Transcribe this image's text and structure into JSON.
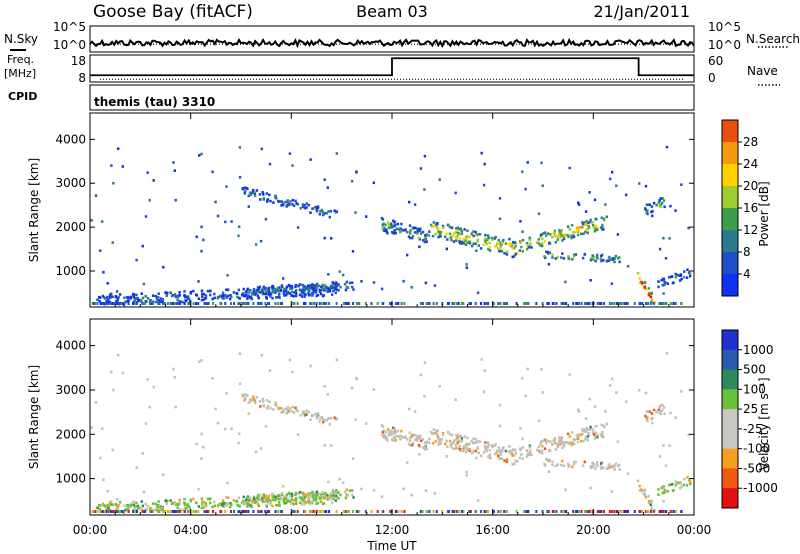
{
  "header": {
    "station": "Goose Bay (fitACF)",
    "beam": "Beam 03",
    "date": "21/Jan/2011"
  },
  "noise_panel": {
    "left_label": "N.Sky",
    "right_label": "N.Search",
    "left_ticks": [
      "10^5",
      "10^0"
    ],
    "right_ticks": [
      "10^5",
      "10^0"
    ],
    "sky_level": 0.35,
    "search_level": 0.3
  },
  "freq_panel": {
    "left_label_1": "Freq.",
    "left_label_2": "[MHz]",
    "right_label": "Nave",
    "left_ticks": [
      "18",
      "8"
    ],
    "right_ticks": [
      "60",
      "0"
    ],
    "freq_steps": [
      {
        "from_h": 0,
        "to_h": 12,
        "value": 10.5
      },
      {
        "from_h": 12,
        "to_h": 21.8,
        "value": 16.8
      },
      {
        "from_h": 21.8,
        "to_h": 24,
        "value": 10.5
      }
    ],
    "nave_level": 6
  },
  "cpid": {
    "label": "CPID",
    "text": "themis (tau) 3310"
  },
  "colors": {
    "power": [
      "#1030f0",
      "#1c4fc8",
      "#2b7a8e",
      "#3f9e4a",
      "#9fcc30",
      "#ffd200",
      "#f39a10",
      "#e85010",
      "#e01010"
    ],
    "velocity": [
      "#e01010",
      "#f05a10",
      "#f3a020",
      "#c8c8c0",
      "#c8c8c0",
      "#6ac03a",
      "#2e8a5a",
      "#2a5ab0",
      "#2030d0"
    ],
    "ground": "#c0c0b8"
  },
  "chart_data": [
    {
      "type": "heatmap",
      "name": "power",
      "ylabel": "Slant Range [km]",
      "yticks": [
        1000,
        2000,
        3000,
        4000
      ],
      "ylim": [
        180,
        4600
      ],
      "xlim": [
        0,
        24
      ],
      "colorbar_label": "Power [dB]",
      "colorbar_ticks": [
        "4",
        "8",
        "12",
        "16",
        "20",
        "24",
        "28"
      ],
      "colorbar_range": [
        0,
        32
      ],
      "regions": [
        {
          "x": [
            6.0,
            9.8
          ],
          "y": [
            2850,
            2300
          ],
          "w": 200,
          "level": 0.2
        },
        {
          "x": [
            11.5,
            13.5
          ],
          "y": [
            2100,
            1800
          ],
          "w": 300,
          "level": 0.3
        },
        {
          "x": [
            13.5,
            17.0
          ],
          "y": [
            2000,
            1500
          ],
          "w": 350,
          "level": 0.5
        },
        {
          "x": [
            17.0,
            20.5
          ],
          "y": [
            1600,
            2150
          ],
          "w": 300,
          "level": 0.55
        },
        {
          "x": [
            18.0,
            21.0
          ],
          "y": [
            1400,
            1300
          ],
          "w": 150,
          "level": 0.35
        },
        {
          "x": [
            22.0,
            22.8
          ],
          "y": [
            2400,
            2600
          ],
          "w": 250,
          "level": 0.3
        },
        {
          "x": [
            21.6,
            22.4
          ],
          "y": [
            1000,
            300
          ],
          "w": 250,
          "level": 0.75
        },
        {
          "x": [
            0.2,
            9.8
          ],
          "y": [
            350,
            600
          ],
          "w": 250,
          "level": 0.15
        },
        {
          "x": [
            6.0,
            10.5
          ],
          "y": [
            550,
            700
          ],
          "w": 200,
          "level": 0.25
        },
        {
          "x": [
            22.5,
            23.8
          ],
          "y": [
            700,
            1000
          ],
          "w": 200,
          "level": 0.2
        }
      ]
    },
    {
      "type": "heatmap",
      "name": "velocity",
      "ylabel": "Slant Range [km]",
      "yticks": [
        1000,
        2000,
        3000,
        4000
      ],
      "ylim": [
        180,
        4600
      ],
      "xlim": [
        0,
        24
      ],
      "xlabel": "Time UT",
      "xticks": [
        "00:00",
        "04:00",
        "08:00",
        "12:00",
        "16:00",
        "20:00",
        "00:00"
      ],
      "xtick_hours": [
        0,
        4,
        8,
        12,
        16,
        20,
        24
      ],
      "colorbar_label": "Velocity [m s⁻¹]",
      "colorbar_ticks": [
        "1000",
        "500",
        "100",
        "25",
        "-25",
        "-100",
        "-500",
        "-1000"
      ]
    }
  ]
}
